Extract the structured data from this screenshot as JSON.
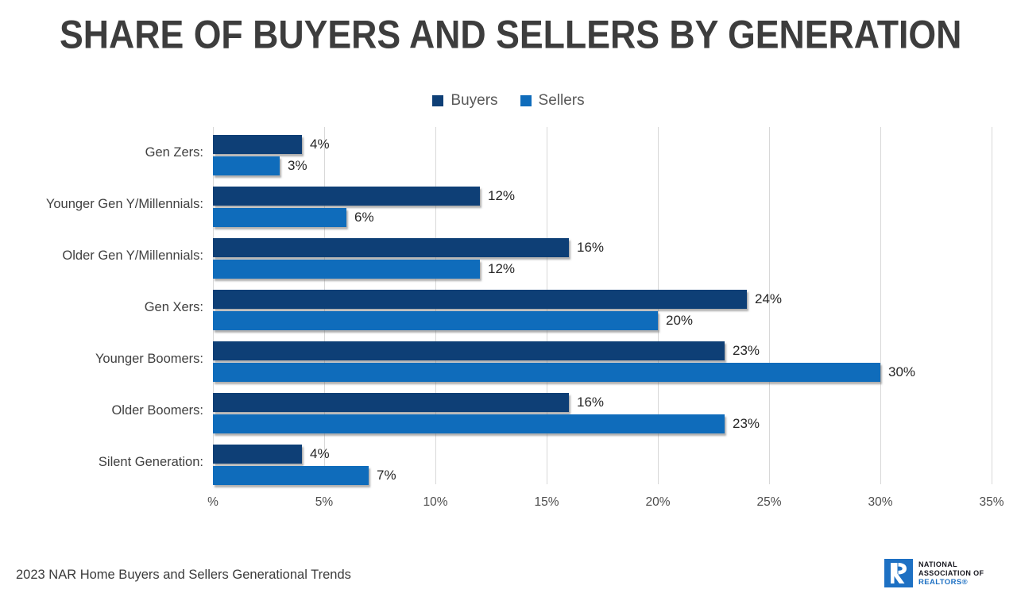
{
  "title": "SHARE OF BUYERS AND SELLERS BY GENERATION",
  "chart_data": {
    "type": "bar",
    "orientation": "horizontal",
    "title": "SHARE OF BUYERS AND SELLERS BY GENERATION",
    "categories": [
      "Gen Zers:",
      "Younger Gen Y/Millennials:",
      "Older Gen Y/Millennials:",
      "Gen Xers:",
      "Younger Boomers:",
      "Older Boomers:",
      "Silent Generation:"
    ],
    "series": [
      {
        "name": "Buyers",
        "color": "#0e3f76",
        "values": [
          4,
          12,
          16,
          24,
          23,
          16,
          4
        ]
      },
      {
        "name": "Sellers",
        "color": "#0f6cbb",
        "values": [
          3,
          6,
          12,
          20,
          30,
          23,
          7
        ]
      }
    ],
    "value_suffix": "%",
    "x_ticks": [
      "%",
      "5%",
      "10%",
      "15%",
      "20%",
      "25%",
      "30%",
      "35%"
    ],
    "xlim": [
      0,
      35
    ],
    "grid": true,
    "legend_position": "top-center"
  },
  "colors": {
    "buyers": "#0e3f76",
    "sellers": "#0f6cbb",
    "gridline": "#d8d8d8",
    "title_text": "#3d3d3d",
    "logo_blue": "#1d70c3"
  },
  "footer": {
    "source": "2023 NAR Home Buyers and Sellers Generational Trends"
  },
  "logo": {
    "line1": "NATIONAL",
    "line2": "ASSOCIATION OF",
    "line3": "REALTORS®"
  }
}
